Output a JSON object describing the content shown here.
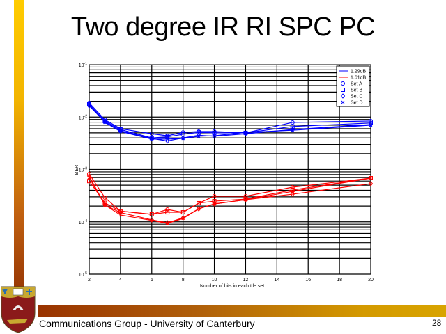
{
  "slide": {
    "title": "Two degree IR RI SPC PC",
    "footer": "Communications Group - University of Canterbury",
    "page_number": "28",
    "logo": "University of Canterbury crest"
  },
  "colors": {
    "blue": "#0000ff",
    "red": "#ff0000",
    "bar_top": "#ffcc00",
    "bar_bottom": "#993300"
  },
  "chart_data": {
    "type": "line",
    "title": "",
    "xlabel": "Number of bits in each tile set",
    "ylabel": "BER",
    "xlim": [
      2,
      20
    ],
    "ylim": [
      1e-05,
      0.1
    ],
    "yscale": "log",
    "grid": true,
    "legend_position": "top-right",
    "x_ticks": [
      "2",
      "4",
      "6",
      "8",
      "10",
      "12",
      "14",
      "16",
      "18",
      "20"
    ],
    "y_ticks": [
      {
        "base": "10",
        "exp": "-1"
      },
      {
        "base": "10",
        "exp": "-2"
      },
      {
        "base": "10",
        "exp": "-3"
      },
      {
        "base": "10",
        "exp": "-4"
      },
      {
        "base": "10",
        "exp": "-5"
      }
    ],
    "legend": [
      {
        "label": "1.29dB",
        "kind": "line",
        "color": "#0000ff"
      },
      {
        "label": "1.61dB",
        "kind": "line",
        "color": "#ff0000"
      },
      {
        "label": "Set A",
        "kind": "marker",
        "marker": "circle"
      },
      {
        "label": "Set B",
        "kind": "marker",
        "marker": "square"
      },
      {
        "label": "Set C",
        "kind": "marker",
        "marker": "diamond"
      },
      {
        "label": "Set D",
        "kind": "marker",
        "marker": "x"
      }
    ],
    "x": [
      2,
      3,
      4,
      6,
      7,
      8,
      9,
      10,
      12,
      15,
      20
    ],
    "series": [
      {
        "name": "1.29dB Set A",
        "color": "#0000ff",
        "marker": "circle",
        "values": [
          0.0186,
          0.0089,
          0.006,
          0.0048,
          0.0044,
          0.0051,
          0.0053,
          0.0053,
          0.005,
          0.0079,
          0.0084
        ]
      },
      {
        "name": "1.29dB Set B",
        "color": "#0000ff",
        "marker": "square",
        "values": [
          0.0175,
          0.0084,
          0.0058,
          0.004,
          0.0042,
          0.0047,
          0.0051,
          0.005,
          0.005,
          0.0066,
          0.0077
        ]
      },
      {
        "name": "1.29dB Set C",
        "color": "#0000ff",
        "marker": "diamond",
        "values": [
          0.0164,
          0.0081,
          0.0055,
          0.0039,
          0.0035,
          0.004,
          0.0045,
          0.0043,
          0.0048,
          0.0058,
          0.0072
        ]
      },
      {
        "name": "1.29dB Set D",
        "color": "#0000ff",
        "marker": "x",
        "values": [
          0.0175,
          0.0079,
          0.0053,
          0.0038,
          0.0038,
          0.0039,
          0.0043,
          0.0044,
          0.0051,
          0.0056,
          0.007
        ]
      },
      {
        "name": "1.61dB Set A",
        "color": "#ff0000",
        "marker": "circle",
        "values": [
          0.00082,
          0.00029,
          0.00016,
          0.000139,
          0.000172,
          0.000152,
          0.000227,
          0.000308,
          0.000308,
          0.000458,
          0.000682
        ]
      },
      {
        "name": "1.61dB Set B",
        "color": "#ff0000",
        "marker": "square",
        "values": [
          0.0006,
          0.00023,
          0.00016,
          0.000139,
          0.000152,
          0.000152,
          0.000227,
          0.000248,
          0.000272,
          0.000405,
          0.000682
        ]
      },
      {
        "name": "1.61dB Set C",
        "color": "#ff0000",
        "marker": "diamond",
        "values": [
          0.00075,
          0.00021,
          0.00015,
          0.000109,
          9.6e-05,
          0.000119,
          0.000177,
          0.00022,
          0.000264,
          0.000337,
          0.000535
        ]
      },
      {
        "name": "1.61dB Set D",
        "color": "#ff0000",
        "marker": "x",
        "values": [
          0.0007,
          0.00021,
          0.000135,
          0.000106,
          9.3e-05,
          0.000116,
          0.000177,
          0.00022,
          0.000264,
          0.000381,
          0.000682
        ]
      }
    ]
  }
}
